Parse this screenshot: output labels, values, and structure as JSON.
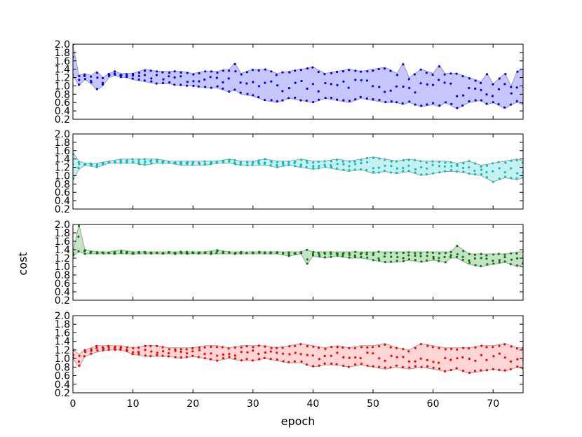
{
  "chart_data": {
    "type": "scatter",
    "layout": "4 stacked panels sharing x axis; each panel shows per-epoch sample points with a shaded min-max band",
    "xlabel": "epoch",
    "ylabel": "cost",
    "xlim": [
      0,
      75
    ],
    "ylim": [
      0.2,
      2.0
    ],
    "x_ticks": [
      "0",
      "10",
      "20",
      "30",
      "40",
      "50",
      "60",
      "70"
    ],
    "y_ticks": [
      "0.2",
      "0.4",
      "0.6",
      "0.8",
      "1.0",
      "1.2",
      "1.4",
      "1.6",
      "1.8",
      "2.0"
    ],
    "grid": false,
    "legend": "none",
    "samples_per_epoch": 3,
    "panels": [
      {
        "color": "#0000ff",
        "band_color": "#9999ff",
        "band": {
          "x": [
            0,
            1,
            2,
            3,
            4,
            5,
            6,
            7,
            8,
            9,
            10,
            12,
            14,
            16,
            18,
            20,
            22,
            24,
            26,
            27,
            28,
            30,
            32,
            34,
            36,
            38,
            40,
            42,
            44,
            46,
            48,
            50,
            52,
            54,
            55,
            56,
            58,
            60,
            61,
            62,
            64,
            66,
            68,
            69,
            70,
            72,
            73,
            74,
            75
          ],
          "upper": [
            2.0,
            1.25,
            1.3,
            1.25,
            1.35,
            1.2,
            1.3,
            1.35,
            1.3,
            1.3,
            1.3,
            1.4,
            1.35,
            1.35,
            1.35,
            1.3,
            1.35,
            1.35,
            1.4,
            1.55,
            1.3,
            1.4,
            1.4,
            1.3,
            1.35,
            1.4,
            1.45,
            1.3,
            1.35,
            1.4,
            1.35,
            1.4,
            1.45,
            1.3,
            1.55,
            1.2,
            1.4,
            1.3,
            1.5,
            1.3,
            1.3,
            1.2,
            1.1,
            1.3,
            1.05,
            1.3,
            1.0,
            1.35,
            1.4
          ],
          "lower": [
            1.25,
            1.0,
            1.15,
            1.05,
            0.9,
            1.0,
            1.2,
            1.25,
            1.2,
            1.2,
            1.15,
            1.1,
            1.05,
            1.05,
            1.0,
            1.0,
            0.95,
            0.95,
            0.85,
            0.9,
            0.8,
            0.75,
            0.65,
            0.6,
            0.7,
            0.65,
            0.6,
            0.7,
            0.65,
            0.6,
            0.7,
            0.65,
            0.6,
            0.6,
            0.55,
            0.6,
            0.5,
            0.55,
            0.5,
            0.6,
            0.45,
            0.6,
            0.65,
            0.55,
            0.6,
            0.45,
            0.55,
            0.6,
            0.55
          ]
        }
      },
      {
        "color": "#00bfbf",
        "band_color": "#99e5e5",
        "band": {
          "x": [
            0,
            1,
            2,
            4,
            6,
            8,
            10,
            12,
            14,
            16,
            18,
            20,
            22,
            24,
            26,
            28,
            30,
            32,
            34,
            36,
            38,
            40,
            42,
            44,
            46,
            48,
            50,
            52,
            54,
            56,
            58,
            60,
            62,
            64,
            66,
            68,
            70,
            72,
            74,
            75
          ],
          "upper": [
            1.55,
            1.35,
            1.3,
            1.3,
            1.35,
            1.4,
            1.4,
            1.4,
            1.4,
            1.35,
            1.35,
            1.35,
            1.35,
            1.35,
            1.4,
            1.35,
            1.35,
            1.4,
            1.35,
            1.35,
            1.4,
            1.35,
            1.35,
            1.4,
            1.35,
            1.4,
            1.45,
            1.4,
            1.35,
            1.4,
            1.35,
            1.35,
            1.35,
            1.3,
            1.35,
            1.25,
            1.3,
            1.35,
            1.4,
            1.35
          ],
          "lower": [
            0.9,
            1.15,
            1.25,
            1.2,
            1.3,
            1.3,
            1.3,
            1.25,
            1.3,
            1.3,
            1.25,
            1.25,
            1.25,
            1.3,
            1.3,
            1.25,
            1.25,
            1.25,
            1.2,
            1.25,
            1.2,
            1.15,
            1.2,
            1.15,
            1.1,
            1.15,
            1.05,
            1.1,
            1.05,
            1.1,
            1.0,
            1.05,
            1.1,
            1.1,
            1.05,
            1.0,
            0.85,
            0.95,
            0.9,
            0.95
          ]
        }
      },
      {
        "color": "#007f00",
        "band_color": "#99cc99",
        "band": {
          "x": [
            0,
            1,
            2,
            4,
            6,
            8,
            10,
            12,
            14,
            16,
            18,
            20,
            22,
            24,
            26,
            28,
            30,
            32,
            34,
            36,
            38,
            39,
            40,
            42,
            44,
            46,
            48,
            50,
            52,
            54,
            56,
            58,
            60,
            62,
            63,
            64,
            66,
            68,
            70,
            72,
            74,
            75
          ],
          "upper": [
            1.35,
            2.0,
            1.4,
            1.35,
            1.35,
            1.4,
            1.35,
            1.35,
            1.35,
            1.35,
            1.35,
            1.35,
            1.35,
            1.4,
            1.35,
            1.35,
            1.35,
            1.35,
            1.35,
            1.35,
            1.35,
            1.4,
            1.35,
            1.35,
            1.35,
            1.35,
            1.35,
            1.35,
            1.35,
            1.35,
            1.35,
            1.35,
            1.35,
            1.35,
            1.35,
            1.5,
            1.3,
            1.3,
            1.3,
            1.3,
            1.35,
            1.35
          ],
          "lower": [
            1.25,
            1.35,
            1.3,
            1.3,
            1.3,
            1.3,
            1.3,
            1.3,
            1.3,
            1.3,
            1.3,
            1.3,
            1.3,
            1.3,
            1.3,
            1.3,
            1.3,
            1.3,
            1.3,
            1.25,
            1.3,
            1.05,
            1.25,
            1.2,
            1.25,
            1.2,
            1.2,
            1.15,
            1.1,
            1.1,
            1.15,
            1.1,
            1.15,
            1.1,
            1.2,
            1.2,
            1.05,
            1.0,
            1.05,
            1.1,
            1.0,
            1.05
          ]
        }
      },
      {
        "color": "#ff0000",
        "band_color": "#ffb3b3",
        "band": {
          "x": [
            0,
            1,
            2,
            4,
            6,
            8,
            10,
            12,
            14,
            16,
            18,
            20,
            22,
            24,
            26,
            28,
            30,
            32,
            34,
            36,
            38,
            40,
            42,
            44,
            46,
            48,
            50,
            52,
            54,
            56,
            58,
            60,
            62,
            64,
            66,
            68,
            70,
            72,
            74,
            75
          ],
          "upper": [
            1.2,
            1.1,
            1.2,
            1.3,
            1.3,
            1.3,
            1.25,
            1.3,
            1.3,
            1.25,
            1.25,
            1.25,
            1.3,
            1.3,
            1.25,
            1.3,
            1.3,
            1.3,
            1.25,
            1.3,
            1.35,
            1.3,
            1.25,
            1.3,
            1.25,
            1.3,
            1.3,
            1.35,
            1.25,
            1.2,
            1.35,
            1.3,
            1.25,
            1.25,
            1.25,
            1.3,
            1.3,
            1.35,
            1.25,
            1.25
          ],
          "lower": [
            1.0,
            0.8,
            1.05,
            1.15,
            1.2,
            1.2,
            1.1,
            1.05,
            1.05,
            1.05,
            1.0,
            1.05,
            1.0,
            0.95,
            1.0,
            0.95,
            0.95,
            1.0,
            0.95,
            0.9,
            0.9,
            0.8,
            0.85,
            0.85,
            0.8,
            0.85,
            0.8,
            0.75,
            0.8,
            0.75,
            0.8,
            0.75,
            0.7,
            0.75,
            0.65,
            0.7,
            0.75,
            0.7,
            0.8,
            0.75
          ]
        }
      }
    ]
  }
}
